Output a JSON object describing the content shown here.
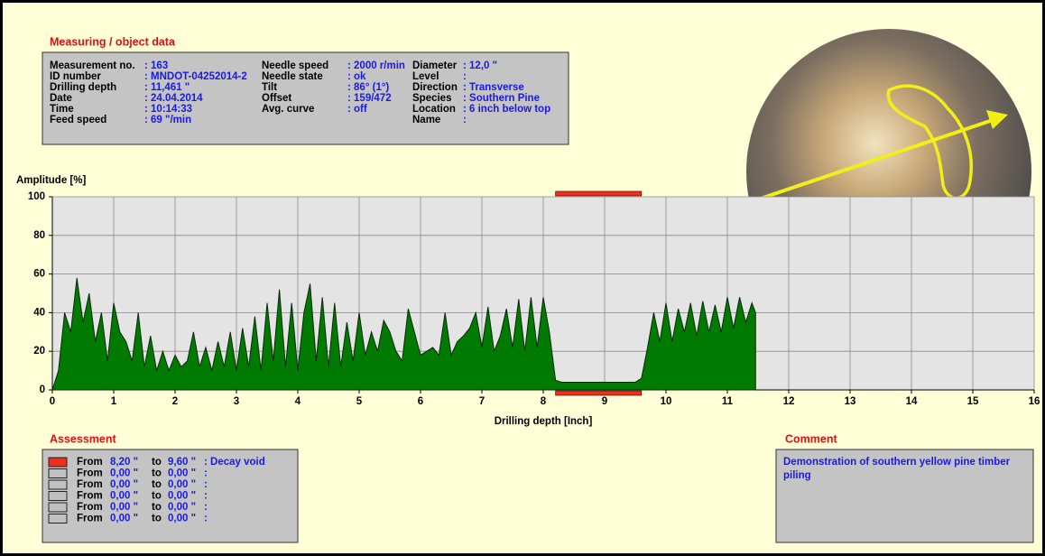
{
  "object_data": {
    "title": "Measuring / object data",
    "columns": [
      [
        {
          "label": "Measurement no.",
          "value": ": 163"
        },
        {
          "label": "ID number",
          "value": ": MNDOT-04252014-2"
        },
        {
          "label": "Drilling depth",
          "value": ": 11,461 \""
        },
        {
          "label": "Date",
          "value": ": 24.04.2014"
        },
        {
          "label": "Time",
          "value": ": 10:14:33"
        },
        {
          "label": "Feed speed",
          "value": ": 69 \"/min"
        }
      ],
      [
        {
          "label": "Needle speed",
          "value": ": 2000 r/min"
        },
        {
          "label": "Needle state",
          "value": ": ok"
        },
        {
          "label": "Tilt",
          "value": ": 86° (1°)"
        },
        {
          "label": "Offset",
          "value": ": 159/472"
        },
        {
          "label": "Avg. curve",
          "value": ": off"
        }
      ],
      [
        {
          "label": "Diameter",
          "value": ": 12,0 \""
        },
        {
          "label": "Level",
          "value": ":"
        },
        {
          "label": "Direction",
          "value": ": Transverse"
        },
        {
          "label": "Species",
          "value": ": Southern Pine"
        },
        {
          "label": "Location",
          "value": ": 6 inch below top"
        },
        {
          "label": "Name",
          "value": ":"
        }
      ]
    ]
  },
  "chart_data": {
    "type": "area",
    "y_label": "Amplitude [%]",
    "x_label": "Drilling depth [Inch]",
    "color": "#007a00",
    "x": [
      0,
      0.1,
      0.2,
      0.3,
      0.4,
      0.5,
      0.6,
      0.7,
      0.8,
      0.9,
      1,
      1.1,
      1.2,
      1.3,
      1.4,
      1.5,
      1.6,
      1.7,
      1.8,
      1.9,
      2,
      2.1,
      2.2,
      2.3,
      2.4,
      2.5,
      2.6,
      2.7,
      2.8,
      2.9,
      3,
      3.1,
      3.2,
      3.3,
      3.4,
      3.5,
      3.6,
      3.7,
      3.8,
      3.9,
      4,
      4.1,
      4.2,
      4.3,
      4.4,
      4.5,
      4.6,
      4.7,
      4.8,
      4.9,
      5,
      5.1,
      5.2,
      5.3,
      5.4,
      5.5,
      5.6,
      5.7,
      5.8,
      5.9,
      6,
      6.1,
      6.2,
      6.3,
      6.4,
      6.5,
      6.6,
      6.7,
      6.8,
      6.9,
      7,
      7.1,
      7.2,
      7.3,
      7.4,
      7.5,
      7.6,
      7.7,
      7.8,
      7.9,
      8,
      8.1,
      8.2,
      8.3,
      8.4,
      8.5,
      8.6,
      8.7,
      8.8,
      8.9,
      9,
      9.1,
      9.2,
      9.3,
      9.4,
      9.5,
      9.6,
      9.7,
      9.8,
      9.9,
      10,
      10.1,
      10.2,
      10.3,
      10.4,
      10.5,
      10.6,
      10.7,
      10.8,
      10.9,
      11,
      11.1,
      11.2,
      11.3,
      11.4,
      11.46
    ],
    "values": [
      0,
      10,
      40,
      30,
      58,
      35,
      50,
      25,
      40,
      15,
      45,
      30,
      25,
      15,
      40,
      12,
      28,
      10,
      20,
      10,
      18,
      12,
      15,
      30,
      12,
      22,
      10,
      25,
      12,
      30,
      10,
      32,
      12,
      38,
      10,
      45,
      15,
      52,
      12,
      45,
      10,
      40,
      55,
      15,
      48,
      12,
      45,
      12,
      35,
      15,
      40,
      18,
      30,
      20,
      36,
      30,
      20,
      15,
      42,
      30,
      18,
      20,
      22,
      18,
      40,
      18,
      25,
      28,
      32,
      40,
      22,
      43,
      20,
      28,
      42,
      22,
      47,
      20,
      48,
      22,
      48,
      30,
      5,
      4,
      4,
      4,
      4,
      4,
      4,
      4,
      4,
      4,
      4,
      4,
      4,
      4,
      6,
      22,
      40,
      25,
      45,
      25,
      42,
      30,
      45,
      28,
      46,
      30,
      44,
      30,
      48,
      32,
      48,
      35,
      45,
      40
    ],
    "xlim": [
      0,
      16
    ],
    "ylim": [
      0,
      100
    ],
    "xticks": [
      0,
      1,
      2,
      3,
      4,
      5,
      6,
      7,
      8,
      9,
      10,
      11,
      12,
      13,
      14,
      15,
      16
    ],
    "yticks": [
      0,
      20,
      40,
      60,
      80,
      100
    ],
    "grid": true
  },
  "assessment": {
    "title": "Assessment",
    "from_text": "From",
    "to_text": "to",
    "rows": [
      {
        "from": {
          "value": 8.2,
          "label": "8,20 \""
        },
        "to": {
          "value": 9.6,
          "label": "9,60 \""
        },
        "note": ": Decay void",
        "color": "#e8321e"
      },
      {
        "from": {
          "value": 0,
          "label": "0,00 \""
        },
        "to": {
          "value": 0,
          "label": "0,00 \""
        },
        "note": ":",
        "color": "#c0c0c0"
      },
      {
        "from": {
          "value": 0,
          "label": "0,00 \""
        },
        "to": {
          "value": 0,
          "label": "0,00 \""
        },
        "note": ":",
        "color": "#c0c0c0"
      },
      {
        "from": {
          "value": 0,
          "label": "0,00 \""
        },
        "to": {
          "value": 0,
          "label": "0,00 \""
        },
        "note": ":",
        "color": "#c0c0c0"
      },
      {
        "from": {
          "value": 0,
          "label": "0,00 \""
        },
        "to": {
          "value": 0,
          "label": "0,00 \""
        },
        "note": ":",
        "color": "#c0c0c0"
      },
      {
        "from": {
          "value": 0,
          "label": "0,00 \""
        },
        "to": {
          "value": 0,
          "label": "0,00 \""
        },
        "note": ":",
        "color": "#c0c0c0"
      }
    ]
  },
  "comment": {
    "title": "Comment",
    "lines": [
      "Demonstration of southern yellow pine timber",
      "piling"
    ]
  }
}
